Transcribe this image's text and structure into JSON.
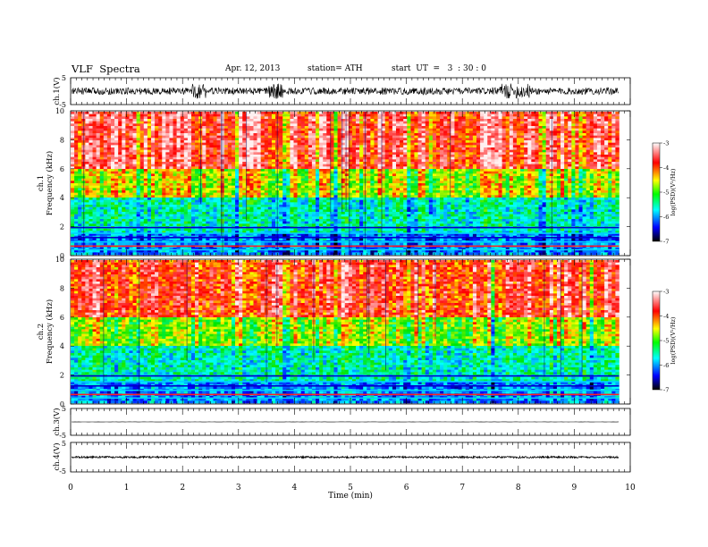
{
  "header": {
    "title": "VLF  Spectra",
    "date": "Apr. 12, 2013",
    "station": "station= ATH",
    "start": "start  UT  =   3  : 30 : 0"
  },
  "chart_data": [
    {
      "type": "line",
      "panel": "ch1-waveform",
      "ylabel": "ch.1(V)",
      "ylim": [
        -5,
        5
      ],
      "yticks": [
        "5",
        "-5"
      ],
      "xlim": [
        0,
        9.8
      ],
      "series": [
        {
          "values_summary": {
            "baseline": 0,
            "amplitude": 1.3,
            "bursts": 4
          }
        }
      ]
    },
    {
      "type": "heatmap",
      "panel": "ch1-spectrogram",
      "ylabel_lines": [
        "ch.1",
        "Frequency (kHz)"
      ],
      "ylim": [
        0,
        10
      ],
      "yticks": [
        "0",
        "2",
        "4",
        "6",
        "8",
        "10"
      ],
      "xlim": [
        0,
        9.8
      ],
      "band_levels": {
        "above_6kHz": -3.5,
        "4_to_6kHz": -4.5,
        "1.5_to_4kHz": -5.5,
        "below_1.5kHz": -6.0
      },
      "colorbar": {
        "label": "log(PSD)(V²/Hz)",
        "range": [
          -7,
          -3
        ],
        "ticks": [
          "-3",
          "-4",
          "-5",
          "-6",
          "-7"
        ]
      }
    },
    {
      "type": "heatmap",
      "panel": "ch2-spectrogram",
      "ylabel_lines": [
        "ch.2",
        "Frequency (kHz)"
      ],
      "ylim": [
        0,
        10
      ],
      "yticks": [
        "0",
        "2",
        "4",
        "6",
        "8",
        "10"
      ],
      "xlim": [
        0,
        9.8
      ],
      "band_levels": {
        "above_6kHz": -3.7,
        "4_to_6kHz": -4.7,
        "1.5_to_4kHz": -5.5,
        "below_1.5kHz": -6.0
      },
      "colorbar": {
        "label": "log(PSD)(V²/Hz)",
        "range": [
          -7,
          -3
        ],
        "ticks": [
          "-3",
          "-4",
          "-5",
          "-6",
          "-7"
        ]
      }
    },
    {
      "type": "line",
      "panel": "ch3-waveform",
      "ylabel": "ch.3(V)",
      "ylim": [
        -5,
        5
      ],
      "yticks": [
        "5",
        "-5"
      ],
      "xlim": [
        0,
        9.8
      ],
      "series": [
        {
          "values_summary": {
            "baseline": 0,
            "amplitude": 0.05
          }
        }
      ]
    },
    {
      "type": "line",
      "panel": "ch4-waveform",
      "ylabel": "ch.4(V)",
      "ylim": [
        -5,
        5
      ],
      "yticks": [
        "5",
        "-5"
      ],
      "xlim": [
        0,
        9.8
      ],
      "series": [
        {
          "values_summary": {
            "baseline": 0,
            "amplitude": 0.3
          }
        }
      ]
    }
  ],
  "xaxis": {
    "label": "Time  (min)",
    "range": [
      0,
      10
    ],
    "ticks": [
      "0",
      "1",
      "2",
      "3",
      "4",
      "5",
      "6",
      "7",
      "8",
      "9",
      "10"
    ]
  },
  "colors": {
    "spectrum": [
      "#000000",
      "#0000ff",
      "#00ffff",
      "#00ff00",
      "#ffff00",
      "#ff0000",
      "#ffffff"
    ],
    "trace": "#000000"
  }
}
